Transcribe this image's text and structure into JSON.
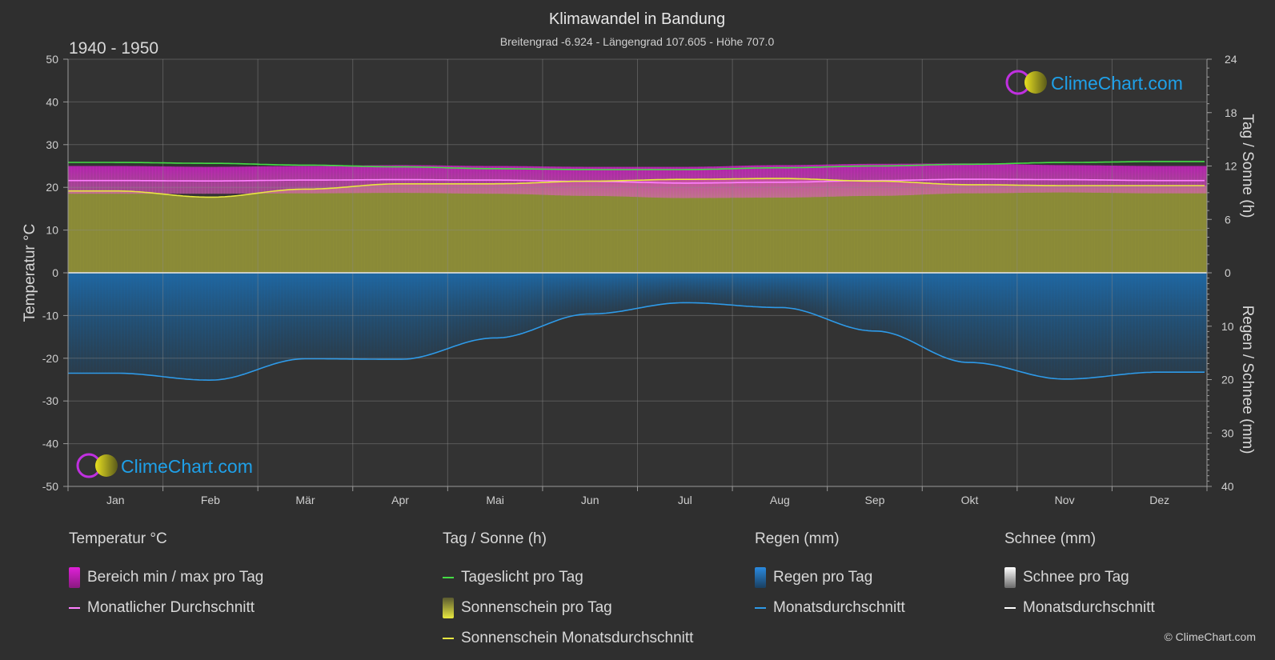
{
  "header": {
    "title": "Klimawandel in Bandung",
    "subtitle": "Breitengrad -6.924 - Längengrad 107.605 - Höhe 707.0",
    "period": "1940 - 1950"
  },
  "watermark": {
    "text": "ClimeChart.com"
  },
  "copyright": "© ClimeChart.com",
  "colors": {
    "background": "#2f2f2f",
    "temp_range": "#d020c8",
    "temp_avg": "#ff80ff",
    "daylight": "#44dd44",
    "sunshine_fill": "#8f8f38",
    "sunshine_avg": "#e8e840",
    "rain_fill": "#1e5f94",
    "rain_avg": "#2e9ae8",
    "snow": "#ffffff",
    "brand_blue": "#1fa0e8"
  },
  "chart_data": {
    "type": "area",
    "title": "Klimawandel in Bandung",
    "x_categories": [
      "Jan",
      "Feb",
      "Mär",
      "Apr",
      "Mai",
      "Jun",
      "Jul",
      "Aug",
      "Sep",
      "Okt",
      "Nov",
      "Dez"
    ],
    "axes": {
      "left": {
        "label": "Temperatur °C",
        "min": -50,
        "max": 50,
        "ticks": [
          50,
          40,
          30,
          20,
          10,
          0,
          -10,
          -20,
          -30,
          -40,
          -50
        ]
      },
      "right_top": {
        "label": "Tag / Sonne (h)",
        "min": 0,
        "max": 24,
        "ticks": [
          24,
          18,
          12,
          6,
          0
        ]
      },
      "right_bottom": {
        "label": "Regen / Schnee (mm)",
        "min": 0,
        "max": 40,
        "ticks": [
          0,
          10,
          20,
          30,
          40
        ]
      }
    },
    "grid": true,
    "series": [
      {
        "name": "Tageslicht pro Tag",
        "unit": "h",
        "values": [
          12.4,
          12.3,
          12.1,
          11.9,
          11.7,
          11.6,
          11.6,
          11.8,
          12.0,
          12.2,
          12.4,
          12.5
        ]
      },
      {
        "name": "Sonnenschein Monatsdurchschnitt",
        "unit": "h",
        "values": [
          9.2,
          8.5,
          9.4,
          10.0,
          10.0,
          10.3,
          10.5,
          10.6,
          10.3,
          9.9,
          9.8,
          9.8
        ]
      },
      {
        "name": "Sonnenschein pro Tag",
        "unit": "h",
        "values": [
          9.2,
          8.5,
          9.4,
          10.0,
          10.0,
          10.3,
          10.5,
          10.6,
          10.3,
          9.9,
          9.8,
          9.8
        ]
      },
      {
        "name": "Monatlicher Durchschnitt",
        "unit": "°C",
        "values": [
          21.6,
          21.5,
          21.7,
          21.8,
          21.7,
          21.4,
          21.0,
          21.2,
          21.6,
          21.9,
          21.8,
          21.6
        ]
      },
      {
        "name": "Bereich min / max pro Tag",
        "unit": "°C",
        "min": [
          18.5,
          18.5,
          18.6,
          18.7,
          18.5,
          18.0,
          17.5,
          17.6,
          18.0,
          18.6,
          18.8,
          18.6
        ],
        "max": [
          25.0,
          24.8,
          25.0,
          25.2,
          25.0,
          24.8,
          24.8,
          25.2,
          25.5,
          25.6,
          25.2,
          25.0
        ]
      },
      {
        "name": "Monatsdurchschnitt",
        "unit": "mm",
        "values": [
          18.8,
          20.1,
          16.1,
          16.2,
          12.2,
          7.7,
          5.6,
          6.5,
          10.9,
          16.8,
          19.9,
          18.6
        ]
      },
      {
        "name": "Regen pro Tag",
        "unit": "mm",
        "values": [
          18.8,
          20.1,
          16.1,
          16.2,
          12.2,
          7.7,
          5.6,
          6.5,
          10.9,
          16.8,
          19.9,
          18.6
        ]
      },
      {
        "name": "Schnee pro Tag",
        "unit": "mm",
        "values": [
          0,
          0,
          0,
          0,
          0,
          0,
          0,
          0,
          0,
          0,
          0,
          0
        ]
      }
    ]
  },
  "legend": {
    "groups": [
      {
        "title": "Temperatur °C",
        "items": [
          {
            "label": "Bereich min / max pro Tag",
            "kind": "bar",
            "color": "#e020d8"
          },
          {
            "label": "Monatlicher Durchschnitt",
            "kind": "line",
            "color": "#ff80ff"
          }
        ]
      },
      {
        "title": "Tag / Sonne (h)",
        "items": [
          {
            "label": "Tageslicht pro Tag",
            "kind": "line",
            "color": "#44dd44"
          },
          {
            "label": "Sonnenschein pro Tag",
            "kind": "bar",
            "color": "#d8d840"
          },
          {
            "label": "Sonnenschein Monatsdurchschnitt",
            "kind": "line",
            "color": "#e8e840"
          }
        ]
      },
      {
        "title": "Regen (mm)",
        "items": [
          {
            "label": "Regen pro Tag",
            "kind": "bar",
            "color": "#2a8ae0"
          },
          {
            "label": "Monatsdurchschnitt",
            "kind": "line",
            "color": "#2e9ae8"
          }
        ]
      },
      {
        "title": "Schnee (mm)",
        "items": [
          {
            "label": "Schnee pro Tag",
            "kind": "bar",
            "color": "#e8e8e8"
          },
          {
            "label": "Monatsdurchschnitt",
            "kind": "line",
            "color": "#ffffff"
          }
        ]
      }
    ]
  }
}
